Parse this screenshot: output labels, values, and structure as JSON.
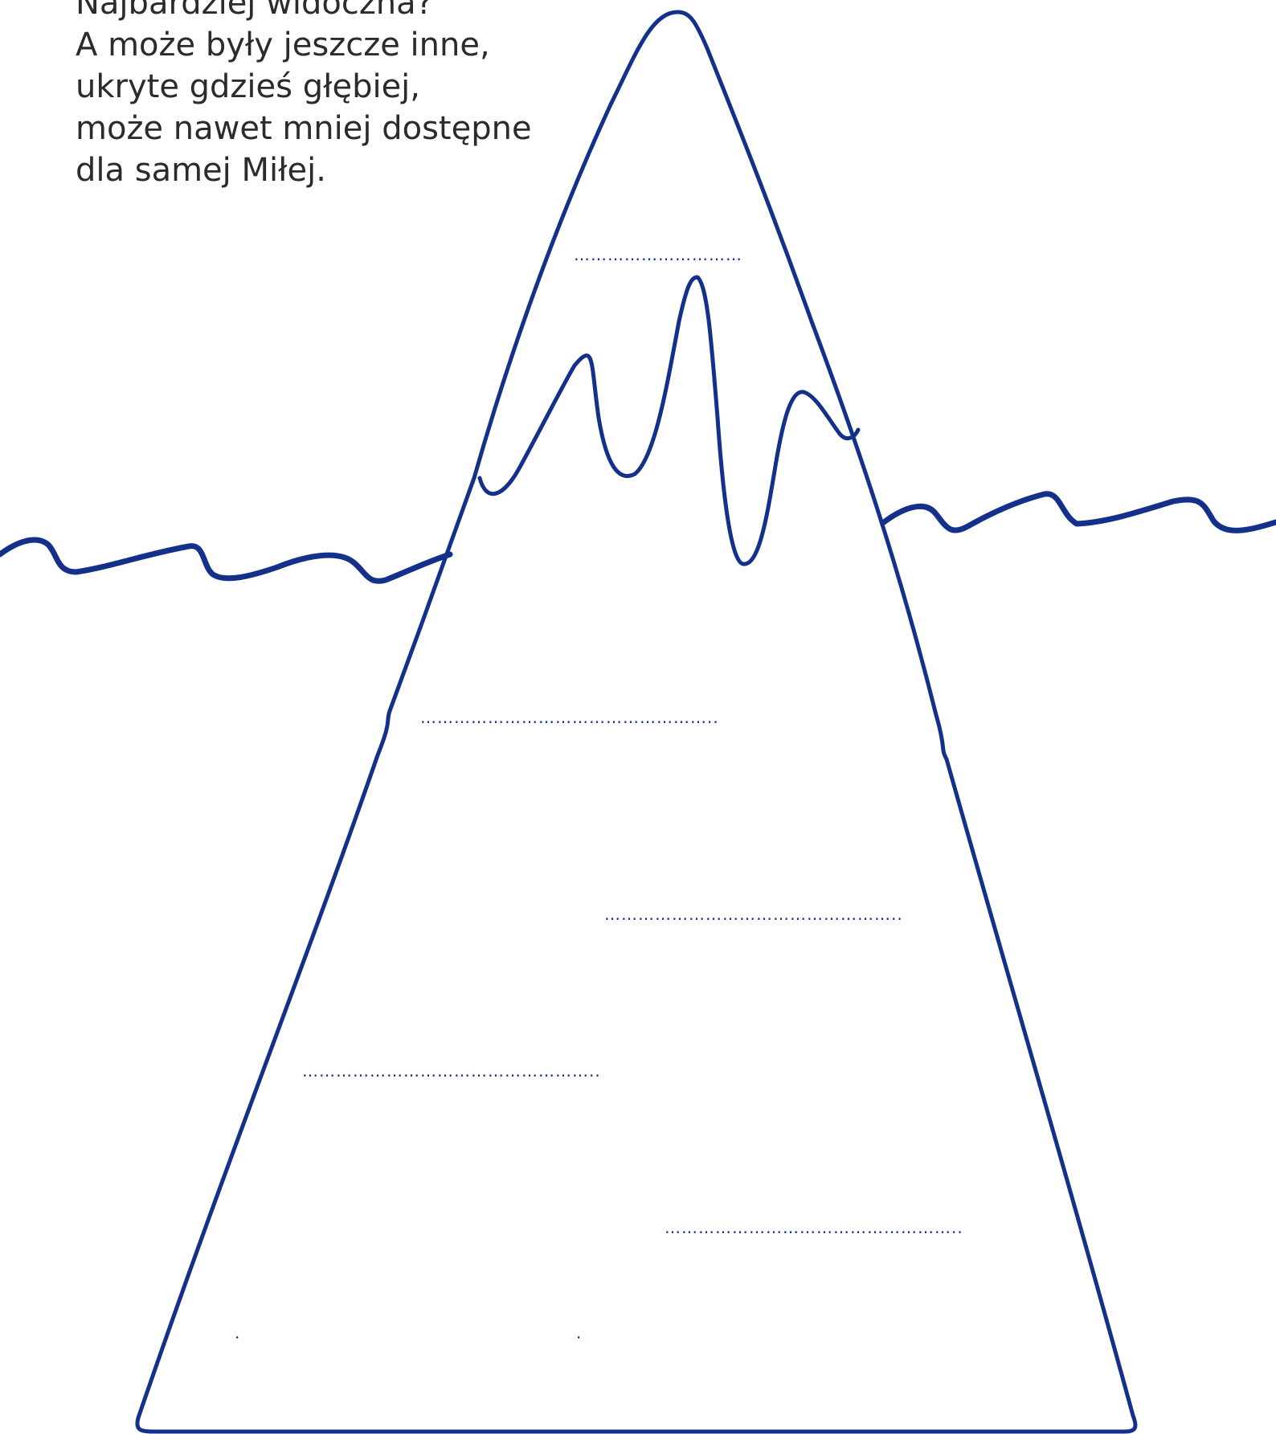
{
  "intro": {
    "lines": [
      "Najbardziej widoczna?",
      "A może były jeszcze inne,",
      "ukryte gdzieś głębiej,",
      "może nawet mniej dostępne",
      "dla samej Miłej."
    ]
  },
  "blanks": {
    "tip": "…………………………",
    "level_1": "……………………………………………..",
    "level_2": "……………………………………………..",
    "level_3": "……………………………………………..",
    "level_4": "……………………………………………..",
    "level_5_left": ".",
    "level_5_right": "."
  },
  "colors": {
    "outline": "#13318a",
    "text": "#2b2b2b"
  }
}
